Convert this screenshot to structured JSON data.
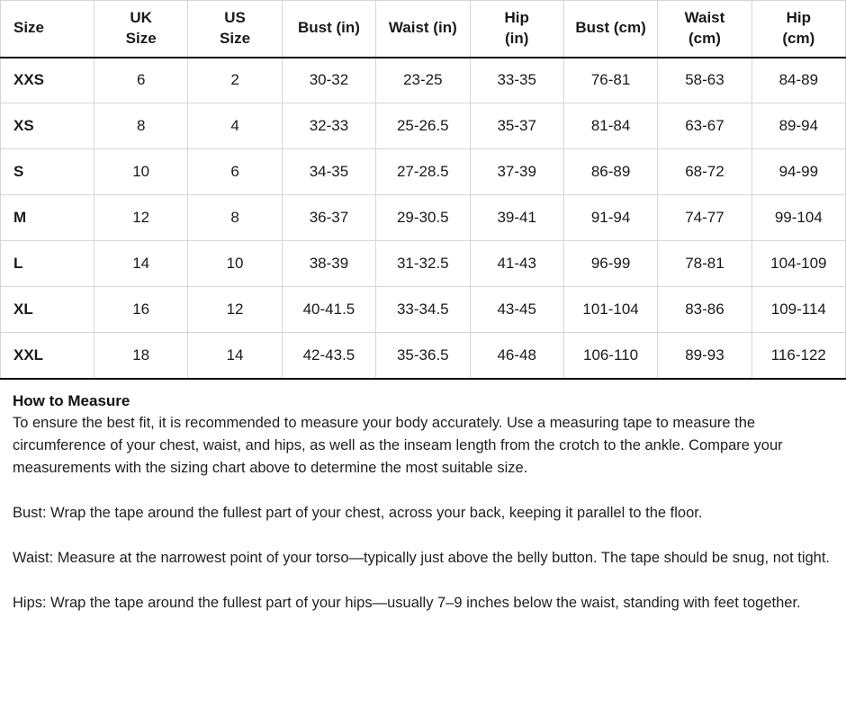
{
  "table": {
    "columns": [
      "Size",
      "UK\nSize",
      "US\nSize",
      "Bust (in)",
      "Waist (in)",
      "Hip\n(in)",
      "Bust (cm)",
      "Waist\n(cm)",
      "Hip\n(cm)"
    ],
    "rows": [
      [
        "XXS",
        "6",
        "2",
        "30-32",
        "23-25",
        "33-35",
        "76-81",
        "58-63",
        "84-89"
      ],
      [
        "XS",
        "8",
        "4",
        "32-33",
        "25-26.5",
        "35-37",
        "81-84",
        "63-67",
        "89-94"
      ],
      [
        "S",
        "10",
        "6",
        "34-35",
        "27-28.5",
        "37-39",
        "86-89",
        "68-72",
        "94-99"
      ],
      [
        "M",
        "12",
        "8",
        "36-37",
        "29-30.5",
        "39-41",
        "91-94",
        "74-77",
        "99-104"
      ],
      [
        "L",
        "14",
        "10",
        "38-39",
        "31-32.5",
        "41-43",
        "96-99",
        "78-81",
        "104-109"
      ],
      [
        "XL",
        "16",
        "12",
        "40-41.5",
        "33-34.5",
        "43-45",
        "101-104",
        "83-86",
        "109-114"
      ],
      [
        "XXL",
        "18",
        "14",
        "42-43.5",
        "35-36.5",
        "46-48",
        "106-110",
        "89-93",
        "116-122"
      ]
    ]
  },
  "how_to_measure": {
    "heading": "How to Measure",
    "intro": "To ensure the best fit, it is recommended to measure your body accurately. Use a measuring tape to measure the circumference of your chest, waist, and hips, as well as the inseam length from the crotch to the ankle. Compare your measurements with the sizing chart above to determine the most suitable size.",
    "bust": "Bust: Wrap the tape around the fullest part of your chest, across your back, keeping it parallel to the floor.",
    "waist": "Waist: Measure at the narrowest point of your torso—typically just above the belly button. The tape should be snug, not tight.",
    "hips": "Hips: Wrap the tape around the fullest part of your hips—usually 7–9 inches below the waist, standing with feet together."
  },
  "colors": {
    "text": "#1a1a1a",
    "grid_line": "#d6d6d6",
    "heavy_line": "#0a0a0a",
    "background": "#ffffff"
  }
}
